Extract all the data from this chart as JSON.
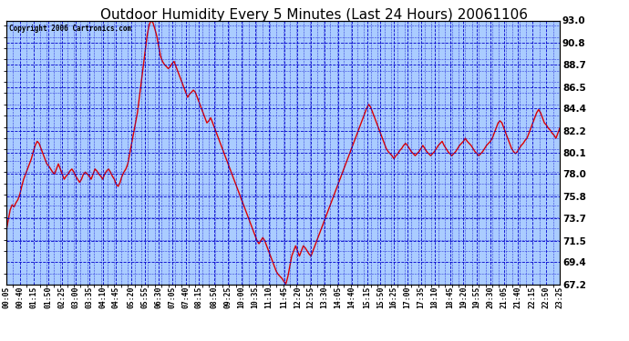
{
  "title": "Outdoor Humidity Every 5 Minutes (Last 24 Hours) 20061106",
  "copyright": "Copyright 2006 Cartronics.com",
  "y_min": 67.2,
  "y_max": 93.0,
  "y_ticks": [
    93.0,
    90.8,
    88.7,
    86.5,
    84.4,
    82.2,
    80.1,
    78.0,
    75.8,
    73.7,
    71.5,
    69.4,
    67.2
  ],
  "bg_color": "#ffffff",
  "plot_bg_color": "#aaccff",
  "grid_color": "#0000cc",
  "line_color": "#dd0000",
  "title_fontsize": 11,
  "values": [
    72.5,
    73.5,
    74.5,
    75.0,
    74.8,
    75.2,
    75.5,
    76.0,
    76.8,
    77.5,
    78.0,
    78.5,
    79.0,
    79.5,
    80.2,
    80.8,
    81.2,
    81.0,
    80.5,
    80.0,
    79.5,
    79.0,
    78.8,
    78.5,
    78.2,
    78.0,
    78.5,
    79.0,
    78.5,
    78.0,
    77.5,
    77.8,
    78.0,
    78.3,
    78.5,
    78.2,
    77.8,
    77.5,
    77.2,
    77.5,
    78.0,
    78.2,
    78.0,
    77.8,
    77.5,
    78.0,
    78.5,
    78.3,
    78.0,
    77.8,
    77.5,
    78.0,
    78.3,
    78.5,
    78.2,
    77.8,
    77.5,
    77.0,
    76.8,
    77.2,
    77.8,
    78.2,
    78.5,
    79.0,
    80.0,
    81.0,
    82.0,
    83.0,
    84.0,
    85.5,
    87.0,
    88.5,
    90.0,
    91.5,
    92.5,
    93.0,
    92.8,
    92.2,
    91.5,
    90.5,
    89.5,
    89.0,
    88.7,
    88.5,
    88.3,
    88.5,
    88.8,
    89.0,
    88.5,
    88.0,
    87.5,
    87.0,
    86.5,
    86.0,
    85.5,
    85.8,
    86.0,
    86.2,
    86.0,
    85.5,
    85.0,
    84.5,
    84.0,
    83.5,
    83.0,
    83.2,
    83.5,
    83.0,
    82.5,
    82.0,
    81.5,
    81.0,
    80.5,
    80.0,
    79.5,
    79.0,
    78.5,
    78.0,
    77.5,
    77.0,
    76.5,
    76.0,
    75.5,
    75.0,
    74.5,
    74.0,
    73.5,
    73.0,
    72.5,
    72.0,
    71.5,
    71.2,
    71.5,
    71.8,
    71.5,
    71.0,
    70.5,
    70.0,
    69.5,
    69.0,
    68.5,
    68.2,
    68.0,
    67.8,
    67.5,
    67.3,
    68.0,
    69.0,
    70.0,
    70.5,
    71.0,
    70.5,
    70.0,
    70.5,
    71.0,
    70.8,
    70.5,
    70.2,
    70.0,
    70.5,
    71.0,
    71.5,
    72.0,
    72.5,
    73.0,
    73.5,
    74.0,
    74.5,
    75.0,
    75.5,
    76.0,
    76.5,
    77.0,
    77.5,
    78.0,
    78.5,
    79.0,
    79.5,
    80.0,
    80.5,
    81.0,
    81.5,
    82.0,
    82.5,
    83.0,
    83.5,
    84.0,
    84.5,
    84.8,
    84.5,
    84.0,
    83.5,
    83.0,
    82.5,
    82.0,
    81.5,
    81.0,
    80.5,
    80.2,
    80.0,
    79.8,
    79.5,
    79.8,
    80.0,
    80.3,
    80.5,
    80.8,
    81.0,
    80.8,
    80.5,
    80.2,
    80.0,
    79.8,
    80.0,
    80.2,
    80.5,
    80.8,
    80.5,
    80.2,
    80.0,
    79.8,
    80.0,
    80.2,
    80.5,
    80.8,
    81.0,
    81.2,
    80.8,
    80.5,
    80.2,
    80.0,
    79.8,
    80.0,
    80.2,
    80.5,
    80.8,
    81.0,
    81.2,
    81.5,
    81.2,
    81.0,
    80.8,
    80.5,
    80.2,
    80.0,
    79.8,
    80.0,
    80.2,
    80.5,
    80.8,
    81.0,
    81.2,
    81.5,
    82.0,
    82.5,
    83.0,
    83.2,
    83.0,
    82.5,
    82.0,
    81.5,
    81.0,
    80.5,
    80.2,
    80.0,
    80.2,
    80.5,
    80.8,
    81.0,
    81.3,
    81.5,
    82.0,
    82.5,
    83.0,
    83.5,
    84.0,
    84.3,
    84.0,
    83.5,
    83.0,
    82.8,
    82.5,
    82.3,
    82.0,
    81.8,
    81.5,
    82.0,
    82.5
  ],
  "x_tick_labels": [
    "00:05",
    "00:40",
    "01:15",
    "01:50",
    "02:25",
    "03:00",
    "03:35",
    "04:10",
    "04:45",
    "05:20",
    "05:55",
    "06:30",
    "07:05",
    "07:40",
    "08:15",
    "08:50",
    "09:25",
    "10:00",
    "10:35",
    "11:10",
    "11:45",
    "12:20",
    "12:55",
    "13:30",
    "14:05",
    "14:40",
    "15:15",
    "15:50",
    "16:25",
    "17:00",
    "17:35",
    "18:10",
    "18:45",
    "19:20",
    "19:55",
    "20:30",
    "21:05",
    "21:40",
    "22:15",
    "22:50",
    "23:25"
  ]
}
